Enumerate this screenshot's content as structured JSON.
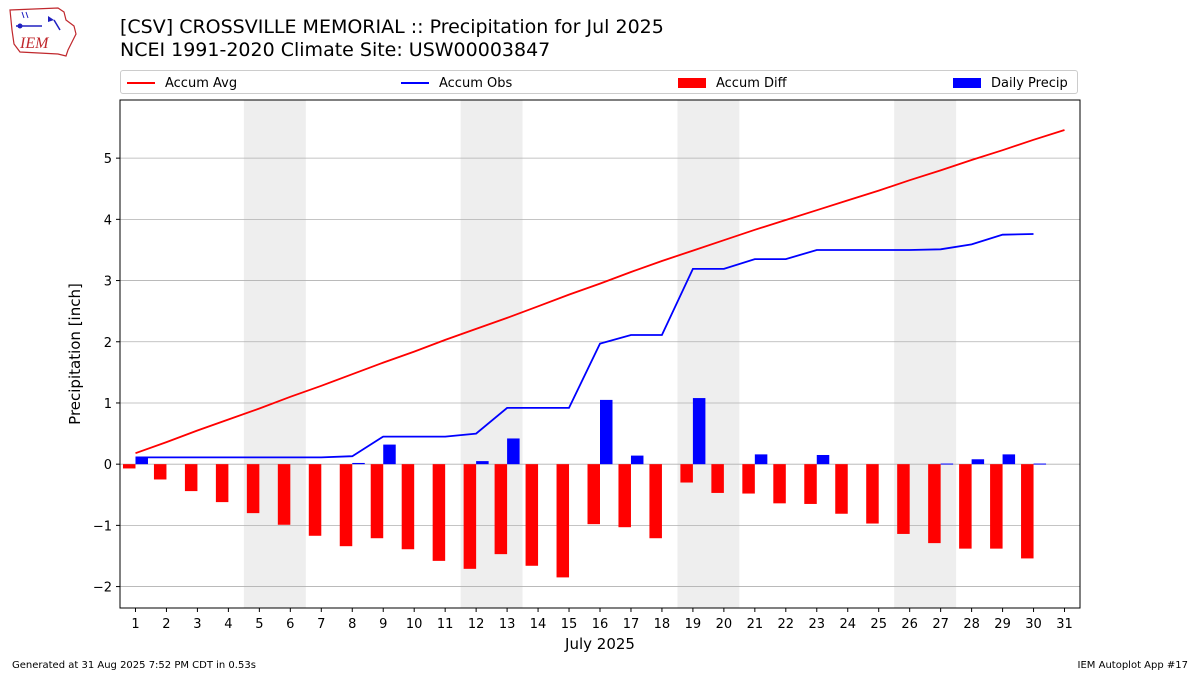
{
  "logo": {
    "text": "IEM",
    "icon": "iowa-weather-logo"
  },
  "header": {
    "title": "[CSV] CROSSVILLE MEMORIAL :: Precipitation for Jul 2025",
    "subtitle": "NCEI 1991-2020 Climate Site: USW00003847"
  },
  "footer": {
    "left": "Generated at 31 Aug 2025 7:52 PM CDT in 0.53s",
    "right": "IEM Autoplot App #17"
  },
  "colors": {
    "avg": "#ff0000",
    "obs": "#0000ff",
    "diff": "#ff0000",
    "daily": "#0000ff",
    "weekend": "#eeeeee",
    "grid": "#b0b0b0"
  },
  "chart_data": {
    "type": "bar",
    "xlabel": "July 2025",
    "ylabel": "Precipitation [inch]",
    "xlim": [
      0.5,
      31.5
    ],
    "ylim": [
      -2.35,
      5.95
    ],
    "yticks": [
      -2,
      -1,
      0,
      1,
      2,
      3,
      4,
      5
    ],
    "ytick_labels": [
      "−2",
      "−1",
      "0",
      "1",
      "2",
      "3",
      "4",
      "5"
    ],
    "x": [
      1,
      2,
      3,
      4,
      5,
      6,
      7,
      8,
      9,
      10,
      11,
      12,
      13,
      14,
      15,
      16,
      17,
      18,
      19,
      20,
      21,
      22,
      23,
      24,
      25,
      26,
      27,
      28,
      29,
      30,
      31
    ],
    "xtick_labels": [
      "1",
      "2",
      "3",
      "4",
      "5",
      "6",
      "7",
      "8",
      "9",
      "10",
      "11",
      "12",
      "13",
      "14",
      "15",
      "16",
      "17",
      "18",
      "19",
      "20",
      "21",
      "22",
      "23",
      "24",
      "25",
      "26",
      "27",
      "28",
      "29",
      "30",
      "31"
    ],
    "shaded_ranges": [
      [
        4.5,
        6.5
      ],
      [
        11.5,
        13.5
      ],
      [
        18.5,
        20.5
      ],
      [
        25.5,
        27.5
      ]
    ],
    "legend_position": "top",
    "series": [
      {
        "name": "Accum Avg",
        "kind": "line",
        "color": "#ff0000",
        "values": [
          0.18,
          0.36,
          0.55,
          0.73,
          0.91,
          1.1,
          1.28,
          1.47,
          1.66,
          1.84,
          2.03,
          2.21,
          2.39,
          2.58,
          2.77,
          2.95,
          3.14,
          3.32,
          3.49,
          3.66,
          3.83,
          3.99,
          4.15,
          4.31,
          4.47,
          4.64,
          4.8,
          4.97,
          5.13,
          5.3,
          5.46
        ]
      },
      {
        "name": "Accum Obs",
        "kind": "line",
        "color": "#0000ff",
        "values": [
          0.11,
          0.11,
          0.11,
          0.11,
          0.11,
          0.11,
          0.11,
          0.13,
          0.45,
          0.45,
          0.45,
          0.5,
          0.92,
          0.92,
          0.92,
          1.97,
          2.11,
          2.11,
          3.19,
          3.19,
          3.35,
          3.35,
          3.5,
          3.5,
          3.5,
          3.5,
          3.51,
          3.59,
          3.75,
          3.76,
          null
        ]
      },
      {
        "name": "Accum Diff",
        "kind": "bar",
        "color": "#ff0000",
        "values": [
          -0.07,
          -0.25,
          -0.44,
          -0.62,
          -0.8,
          -0.99,
          -1.17,
          -1.34,
          -1.21,
          -1.39,
          -1.58,
          -1.71,
          -1.47,
          -1.66,
          -1.85,
          -0.98,
          -1.03,
          -1.21,
          -0.3,
          -0.47,
          -0.48,
          -0.64,
          -0.65,
          -0.81,
          -0.97,
          -1.14,
          -1.29,
          -1.38,
          -1.38,
          -1.54,
          null
        ]
      },
      {
        "name": "Daily Precip",
        "kind": "bar",
        "color": "#0000ff",
        "values": [
          0.11,
          0,
          0,
          0,
          0,
          0,
          0,
          0.02,
          0.32,
          0,
          0,
          0.05,
          0.42,
          0,
          0,
          1.05,
          0.14,
          0,
          1.08,
          0,
          0.16,
          0,
          0.15,
          0,
          0,
          0,
          0.01,
          0.08,
          0.16,
          0.01,
          null
        ]
      }
    ]
  }
}
